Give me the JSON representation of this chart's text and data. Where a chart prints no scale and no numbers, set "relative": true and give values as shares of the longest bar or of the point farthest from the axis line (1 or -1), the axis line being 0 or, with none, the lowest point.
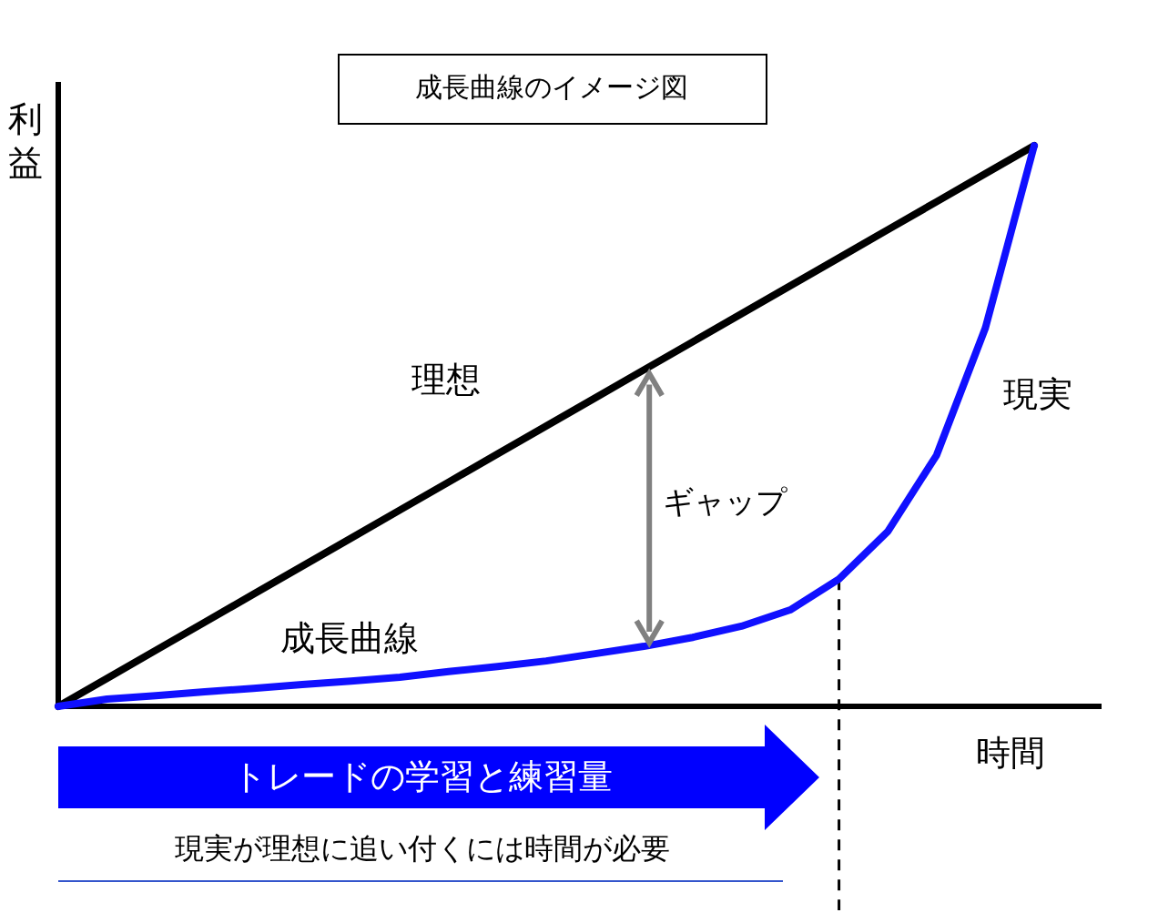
{
  "chart_data": {
    "type": "line",
    "title": "成長曲線のイメージ図",
    "xlabel": "時間",
    "ylabel": "利益",
    "relative": true,
    "marker": "none",
    "line_style": "solid",
    "categories": [
      null,
      null,
      null,
      null,
      null,
      null,
      null,
      null,
      null,
      null,
      null,
      null,
      null,
      null,
      null,
      null,
      null,
      null,
      null,
      null,
      null
    ],
    "series": [
      {
        "name": "理想",
        "color": "#000000",
        "values": [
          0,
          0.05,
          0.1,
          0.15,
          0.2,
          0.25,
          0.3,
          0.35,
          0.4,
          0.45,
          0.5,
          0.55,
          0.6,
          0.65,
          0.7,
          0.75,
          0.8,
          0.85,
          0.9,
          0.95,
          1
        ]
      },
      {
        "name": "現実",
        "color": "#1010ff",
        "values": [
          0,
          0.013,
          0.019,
          0.026,
          0.032,
          0.039,
          0.045,
          0.052,
          0.062,
          0.071,
          0.081,
          0.094,
          0.107,
          0.123,
          0.143,
          0.172,
          0.227,
          0.312,
          0.448,
          0.675,
          1
        ]
      }
    ],
    "annotations": [
      "成長曲線",
      "ギャップ",
      "トレードの学習と練習量",
      "現実が理想に追い付くには時間が必要"
    ]
  }
}
